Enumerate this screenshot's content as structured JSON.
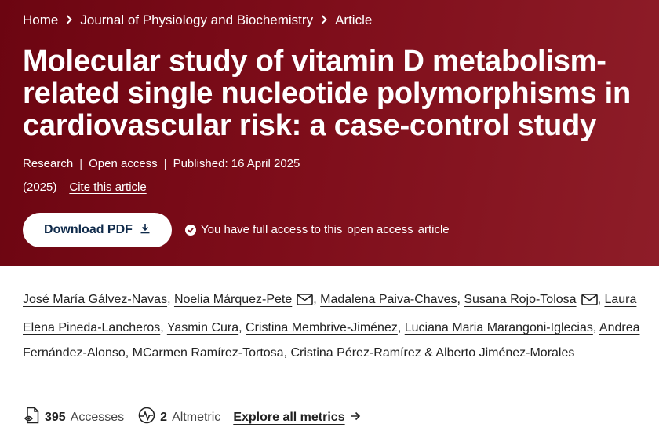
{
  "breadcrumb": {
    "home": "Home",
    "journal": "Journal of Physiology and Biochemistry",
    "current": "Article"
  },
  "article": {
    "title": "Molecular study of vitamin D metabolism-related single nucleotide polymorphisms in cardiovascular risk: a case-control study",
    "type": "Research",
    "open_access": "Open access",
    "published": "Published: 16 April 2025",
    "year": "(2025)",
    "cite": "Cite this article"
  },
  "download": {
    "label": "Download PDF"
  },
  "access_note": {
    "prefix": "You have full access to this",
    "link": "open access",
    "suffix": "article"
  },
  "authors": [
    "José María Gálvez-Navas",
    "Noelia Márquez-Pete",
    "Madalena Paiva-Chaves",
    "Susana Rojo-Tolosa",
    "Laura Elena Pineda-Lancheros",
    "Yasmin Cura",
    "Cristina Membrive-Jiménez",
    "Luciana Maria Marangoni-Iglecias",
    "Andrea Fernández-Alonso",
    "MCarmen Ramírez-Tortosa",
    "Cristina Pérez-Ramírez",
    "Alberto Jiménez-Morales"
  ],
  "author_and": "&",
  "metrics": {
    "accesses_count": "395",
    "accesses_label": "Accesses",
    "altmetric_count": "2",
    "altmetric_label": "Altmetric",
    "explore": "Explore all metrics"
  },
  "icons": {
    "breadcrumb_separator": "chevron-right-icon",
    "download": "download-icon",
    "access": "check-circle-icon",
    "email": "mail-icon",
    "accesses": "eye-document-icon",
    "altmetric": "altmetric-icon",
    "explore": "arrow-right-icon"
  },
  "colors": {
    "hero_dark": "#6c0511",
    "hero_light": "#8e1d28",
    "button_text": "#0f2a4a"
  }
}
